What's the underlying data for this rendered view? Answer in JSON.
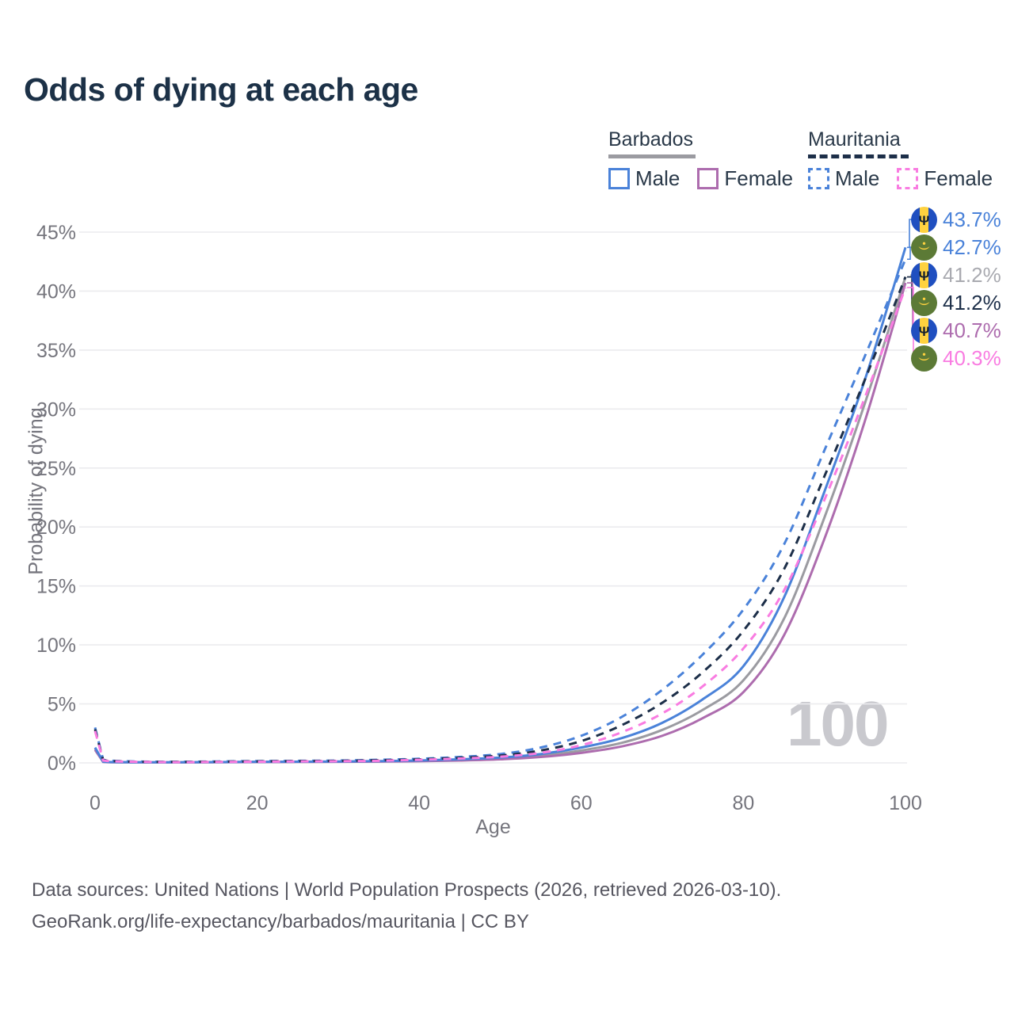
{
  "title": "Odds of dying at each age",
  "legend": {
    "groups": [
      {
        "country": "Barbados",
        "line_style": "solid",
        "line_color": "#9b9ba1",
        "items": [
          {
            "label": "Male",
            "color": "#4a82d9",
            "dash": false
          },
          {
            "label": "Female",
            "color": "#ad6cae",
            "dash": false
          }
        ]
      },
      {
        "country": "Mauritania",
        "line_style": "dashed",
        "line_color": "#1d2f49",
        "items": [
          {
            "label": "Male",
            "color": "#4a82d9",
            "dash": true
          },
          {
            "label": "Female",
            "color": "#f97ce1",
            "dash": true
          }
        ]
      }
    ]
  },
  "watermark": "100",
  "footer": {
    "line1": "Data sources: United Nations | World Population Prospects (2026, retrieved 2026-03-10).",
    "line2": "GeoRank.org/life-expectancy/barbados/mauritania | CC BY"
  },
  "colors": {
    "blue": "#4a82d9",
    "purple": "#ad6cae",
    "pink": "#f97ce1",
    "navy": "#1d2f49",
    "gray_line": "#9b9ba1",
    "gray_label": "#a9aab0",
    "gridline": "#ebebee",
    "axis_text": "#75757d",
    "title_text": "#1c3147",
    "watermark_text": "#c9c9ce",
    "footer_text": "#565660"
  },
  "chart_data": {
    "type": "line",
    "title": "Odds of dying at each age",
    "xlabel": "Age",
    "ylabel": "Probability of dying",
    "xlim": [
      0,
      100
    ],
    "ylim": [
      0,
      45
    ],
    "x_ticks": [
      0,
      20,
      40,
      60,
      80,
      100
    ],
    "y_ticks": [
      0,
      5,
      10,
      15,
      20,
      25,
      30,
      35,
      40,
      45
    ],
    "y_tick_suffix": "%",
    "grid": "horizontal",
    "legend_position": "top-right",
    "x": [
      0,
      1,
      2,
      5,
      10,
      15,
      20,
      25,
      30,
      35,
      40,
      45,
      50,
      55,
      60,
      65,
      70,
      75,
      80,
      85,
      90,
      95,
      100
    ],
    "series": [
      {
        "id": "barbados-male",
        "name": "Barbados Male",
        "color": "#4a82d9",
        "dash": false,
        "label_row": 0,
        "end_label": "43.7%",
        "label_color": "#4a82d9",
        "flag": "barbados",
        "values": [
          1.3,
          0.1,
          0.07,
          0.05,
          0.05,
          0.07,
          0.09,
          0.1,
          0.12,
          0.15,
          0.2,
          0.3,
          0.45,
          0.75,
          1.3,
          2.1,
          3.4,
          5.4,
          8.2,
          14.0,
          23.0,
          32.5,
          43.7
        ]
      },
      {
        "id": "mauritania-male",
        "name": "Mauritania Male",
        "color": "#4a82d9",
        "dash": true,
        "label_row": 1,
        "end_label": "42.7%",
        "label_color": "#4a82d9",
        "flag": "mauritania",
        "values": [
          3.0,
          0.25,
          0.18,
          0.12,
          0.09,
          0.12,
          0.15,
          0.17,
          0.2,
          0.26,
          0.35,
          0.5,
          0.75,
          1.3,
          2.3,
          3.9,
          6.2,
          9.2,
          13.0,
          18.5,
          26.5,
          34.5,
          42.7
        ]
      },
      {
        "id": "barbados-total",
        "name": "Barbados",
        "color": "#9b9ba1",
        "dash": false,
        "label_row": 2,
        "end_label": "41.2%",
        "label_color": "#a9aab0",
        "flag": "barbados",
        "values": [
          1.2,
          0.09,
          0.06,
          0.05,
          0.04,
          0.06,
          0.08,
          0.09,
          0.1,
          0.13,
          0.17,
          0.25,
          0.37,
          0.6,
          1.05,
          1.7,
          2.8,
          4.5,
          7.0,
          12.2,
          20.8,
          30.5,
          41.2
        ]
      },
      {
        "id": "mauritania-total",
        "name": "Mauritania",
        "color": "#1d2f49",
        "dash": true,
        "label_row": 3,
        "end_label": "41.2%",
        "label_color": "#1d2f49",
        "flag": "mauritania",
        "values": [
          2.85,
          0.22,
          0.16,
          0.1,
          0.08,
          0.1,
          0.13,
          0.15,
          0.17,
          0.22,
          0.3,
          0.43,
          0.62,
          1.05,
          1.85,
          3.2,
          5.1,
          7.7,
          11.2,
          16.4,
          24.3,
          32.5,
          41.2
        ]
      },
      {
        "id": "barbados-female",
        "name": "Barbados Female",
        "color": "#ad6cae",
        "dash": false,
        "label_row": 4,
        "end_label": "40.7%",
        "label_color": "#ad6cae",
        "flag": "barbados",
        "values": [
          1.1,
          0.08,
          0.05,
          0.04,
          0.04,
          0.05,
          0.07,
          0.08,
          0.09,
          0.11,
          0.14,
          0.2,
          0.3,
          0.5,
          0.85,
          1.4,
          2.3,
          3.8,
          6.0,
          10.8,
          19.0,
          29.0,
          40.7
        ]
      },
      {
        "id": "mauritania-female",
        "name": "Mauritania Female",
        "color": "#f97ce1",
        "dash": true,
        "label_row": 5,
        "end_label": "40.3%",
        "label_color": "#f97ce1",
        "flag": "mauritania",
        "values": [
          2.7,
          0.2,
          0.14,
          0.09,
          0.06,
          0.08,
          0.1,
          0.12,
          0.14,
          0.18,
          0.26,
          0.37,
          0.52,
          0.85,
          1.5,
          2.6,
          4.2,
          6.5,
          9.7,
          14.6,
          22.3,
          31.0,
          40.3
        ]
      }
    ]
  }
}
